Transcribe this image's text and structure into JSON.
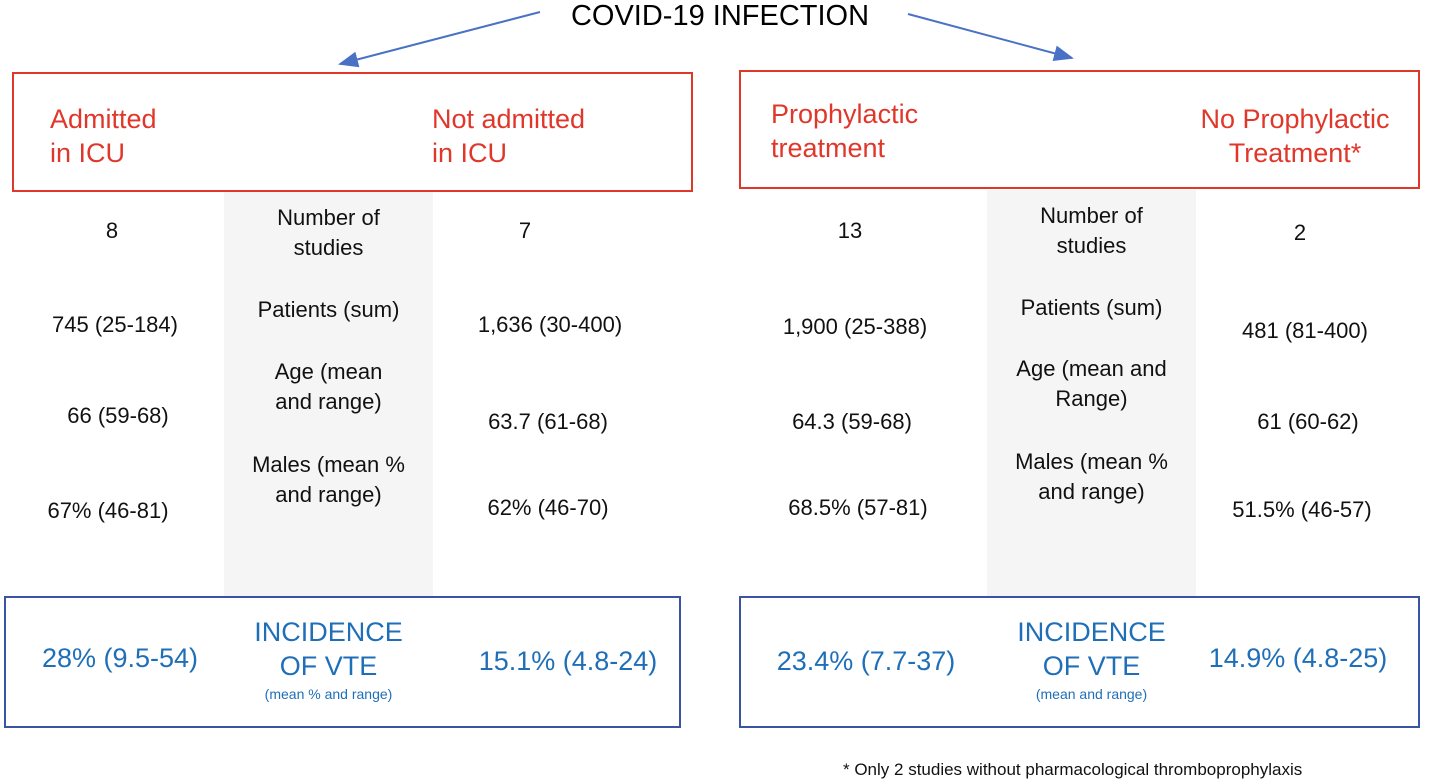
{
  "title": "COVID-19 INFECTION",
  "left": {
    "group_a": "Admitted\nin ICU",
    "group_b": "Not admitted\nin ICU",
    "labels": [
      "Number of\nstudies",
      "Patients (sum)",
      "Age (mean\nand range)",
      "Males (mean %\nand range)"
    ],
    "a_values": [
      "8",
      "745 (25-184)",
      "66 (59-68)",
      "67% (46-81)"
    ],
    "b_values": [
      "7",
      "1,636 (30-400)",
      "63.7 (61-68)",
      "62% (46-70)"
    ],
    "incidence_title": "INCIDENCE\nOF VTE",
    "incidence_sub": "(mean % and range)",
    "incidence_a": "28% (9.5-54)",
    "incidence_b": "15.1% (4.8-24)"
  },
  "right": {
    "group_a": "Prophylactic\ntreatment",
    "group_b": "No Prophylactic\nTreatment*",
    "labels": [
      "Number of\nstudies",
      "Patients (sum)",
      "Age (mean and\nRange)",
      "Males (mean %\nand range)"
    ],
    "a_values": [
      "13",
      "1,900 (25-388)",
      "64.3 (59-68)",
      "68.5% (57-81)"
    ],
    "b_values": [
      "2",
      "481 (81-400)",
      "61 (60-62)",
      "51.5% (46-57)"
    ],
    "incidence_title": "INCIDENCE\nOF VTE",
    "incidence_sub": "(mean and range)",
    "incidence_a": "23.4% (7.7-37)",
    "incidence_b": "14.9% (4.8-25)"
  },
  "footnote": "* Only 2 studies without pharmacological thromboprophylaxis",
  "colors": {
    "red": "#e0372b",
    "blue_text": "#1f6fb8",
    "blue_border": "#3a54a3",
    "grey_band": "#f5f5f5",
    "arrow": "#4a72c4"
  }
}
